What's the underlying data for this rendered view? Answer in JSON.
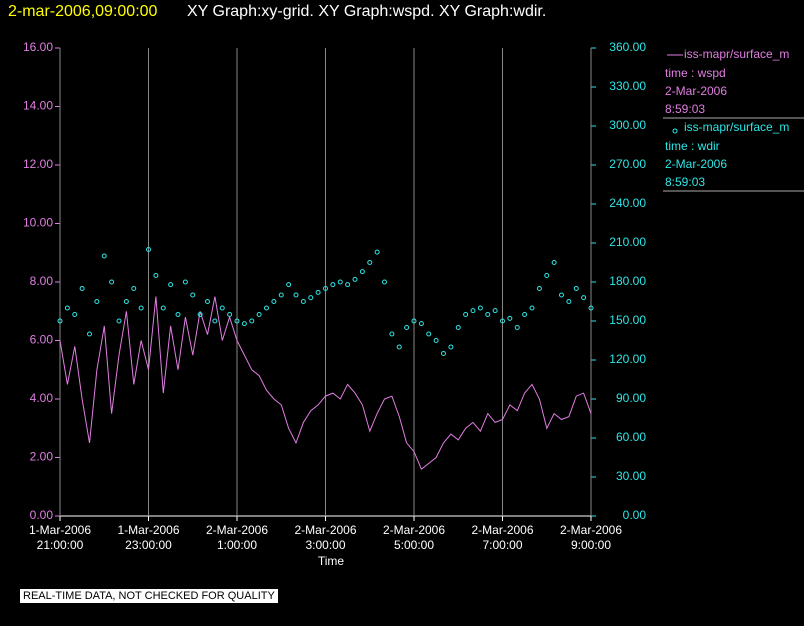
{
  "chart_data": {
    "type": "line-scatter",
    "title": "2-mar-2006,09:00:00",
    "subtitle": "XY Graph:xy-grid.  XY Graph:wspd.  XY Graph:wdir.",
    "xlabel": "Time",
    "annotation": "REAL-TIME DATA, NOT CHECKED FOR QUALITY",
    "x": [
      "2006-03-01T21:00",
      "2006-03-01T21:10",
      "2006-03-01T21:20",
      "2006-03-01T21:30",
      "2006-03-01T21:40",
      "2006-03-01T21:50",
      "2006-03-01T22:00",
      "2006-03-01T22:10",
      "2006-03-01T22:20",
      "2006-03-01T22:30",
      "2006-03-01T22:40",
      "2006-03-01T22:50",
      "2006-03-01T23:00",
      "2006-03-01T23:10",
      "2006-03-01T23:20",
      "2006-03-01T23:30",
      "2006-03-01T23:40",
      "2006-03-01T23:50",
      "2006-03-02T00:00",
      "2006-03-02T00:10",
      "2006-03-02T00:20",
      "2006-03-02T00:30",
      "2006-03-02T00:40",
      "2006-03-02T00:50",
      "2006-03-02T01:00",
      "2006-03-02T01:10",
      "2006-03-02T01:20",
      "2006-03-02T01:30",
      "2006-03-02T01:40",
      "2006-03-02T01:50",
      "2006-03-02T02:00",
      "2006-03-02T02:10",
      "2006-03-02T02:20",
      "2006-03-02T02:30",
      "2006-03-02T02:40",
      "2006-03-02T02:50",
      "2006-03-02T03:00",
      "2006-03-02T03:10",
      "2006-03-02T03:20",
      "2006-03-02T03:30",
      "2006-03-02T03:40",
      "2006-03-02T03:50",
      "2006-03-02T04:00",
      "2006-03-02T04:10",
      "2006-03-02T04:20",
      "2006-03-02T04:30",
      "2006-03-02T04:40",
      "2006-03-02T04:50",
      "2006-03-02T05:00",
      "2006-03-02T05:10",
      "2006-03-02T05:20",
      "2006-03-02T05:30",
      "2006-03-02T05:40",
      "2006-03-02T05:50",
      "2006-03-02T06:00",
      "2006-03-02T06:10",
      "2006-03-02T06:20",
      "2006-03-02T06:30",
      "2006-03-02T06:40",
      "2006-03-02T06:50",
      "2006-03-02T07:00",
      "2006-03-02T07:10",
      "2006-03-02T07:20",
      "2006-03-02T07:30",
      "2006-03-02T07:40",
      "2006-03-02T07:50",
      "2006-03-02T08:00",
      "2006-03-02T08:10",
      "2006-03-02T08:20",
      "2006-03-02T08:30",
      "2006-03-02T08:40",
      "2006-03-02T08:50",
      "2006-03-02T09:00"
    ],
    "xlim": [
      "2006-03-01T21:00",
      "2006-03-02T09:00"
    ],
    "xticks": [
      {
        "value": "2006-03-01T21:00",
        "label": "1-Mar-2006\n21:00:00"
      },
      {
        "value": "2006-03-01T23:00",
        "label": "1-Mar-2006\n23:00:00"
      },
      {
        "value": "2006-03-02T01:00",
        "label": "2-Mar-2006\n1:00:00"
      },
      {
        "value": "2006-03-02T03:00",
        "label": "2-Mar-2006\n3:00:00"
      },
      {
        "value": "2006-03-02T05:00",
        "label": "2-Mar-2006\n5:00:00"
      },
      {
        "value": "2006-03-02T07:00",
        "label": "2-Mar-2006\n7:00:00"
      },
      {
        "value": "2006-03-02T09:00",
        "label": "2-Mar-2006\n9:00:00"
      }
    ],
    "ylim": [
      0,
      16
    ],
    "yticks": [
      {
        "value": 0,
        "label": "0.00"
      },
      {
        "value": 2,
        "label": "2.00"
      },
      {
        "value": 4,
        "label": "4.00"
      },
      {
        "value": 6,
        "label": "6.00"
      },
      {
        "value": 8,
        "label": "8.00"
      },
      {
        "value": 10,
        "label": "10.00"
      },
      {
        "value": 12,
        "label": "12.00"
      },
      {
        "value": 14,
        "label": "14.00"
      },
      {
        "value": 16,
        "label": "16.00"
      }
    ],
    "y2lim": [
      0,
      360
    ],
    "y2ticks": [
      {
        "value": 0,
        "label": "0.00"
      },
      {
        "value": 30,
        "label": "30.00"
      },
      {
        "value": 60,
        "label": "60.00"
      },
      {
        "value": 90,
        "label": "90.00"
      },
      {
        "value": 120,
        "label": "120.00"
      },
      {
        "value": 150,
        "label": "150.00"
      },
      {
        "value": 180,
        "label": "180.00"
      },
      {
        "value": 210,
        "label": "210.00"
      },
      {
        "value": 240,
        "label": "240.00"
      },
      {
        "value": 270,
        "label": "270.00"
      },
      {
        "value": 300,
        "label": "300.00"
      },
      {
        "value": 330,
        "label": "330.00"
      },
      {
        "value": 360,
        "label": "360.00"
      }
    ],
    "grid": true,
    "series": [
      {
        "name": "iss-mapr/surface_m",
        "legend_lines": [
          "time : wspd",
          "2-Mar-2006",
          "8:59:03"
        ],
        "style": "line",
        "color": "#e27de2",
        "values": [
          6.0,
          4.5,
          5.8,
          4.0,
          2.5,
          5.0,
          6.5,
          3.5,
          5.5,
          7.0,
          4.5,
          6.0,
          5.0,
          7.5,
          4.2,
          6.5,
          5.0,
          6.8,
          5.5,
          7.0,
          6.2,
          7.5,
          6.0,
          6.8,
          6.0,
          5.5,
          5.0,
          4.8,
          4.3,
          4.0,
          3.8,
          3.0,
          2.5,
          3.2,
          3.6,
          3.8,
          4.1,
          4.2,
          4.0,
          4.5,
          4.2,
          3.8,
          2.9,
          3.5,
          4.0,
          4.1,
          3.4,
          2.5,
          2.2,
          1.6,
          1.8,
          2.0,
          2.5,
          2.8,
          2.6,
          3.0,
          3.2,
          2.9,
          3.5,
          3.2,
          3.3,
          3.8,
          3.6,
          4.2,
          4.5,
          4.0,
          3.0,
          3.5,
          3.3,
          3.4,
          4.1,
          4.2,
          3.5
        ]
      },
      {
        "name": "iss-mapr/surface_m",
        "legend_lines": [
          "time : wdir",
          "2-Mar-2006",
          "8:59:03"
        ],
        "style": "scatter",
        "axis": "y2",
        "color": "#2ee6e6",
        "values": [
          150,
          160,
          155,
          175,
          140,
          165,
          200,
          180,
          150,
          165,
          175,
          160,
          205,
          185,
          160,
          178,
          155,
          180,
          170,
          155,
          165,
          150,
          160,
          155,
          150,
          148,
          150,
          155,
          160,
          165,
          170,
          178,
          170,
          165,
          168,
          172,
          175,
          178,
          180,
          178,
          182,
          188,
          195,
          203,
          180,
          140,
          130,
          145,
          150,
          148,
          140,
          135,
          125,
          130,
          145,
          155,
          158,
          160,
          155,
          158,
          150,
          152,
          145,
          155,
          160,
          175,
          185,
          195,
          170,
          165,
          175,
          168,
          160
        ]
      }
    ]
  }
}
